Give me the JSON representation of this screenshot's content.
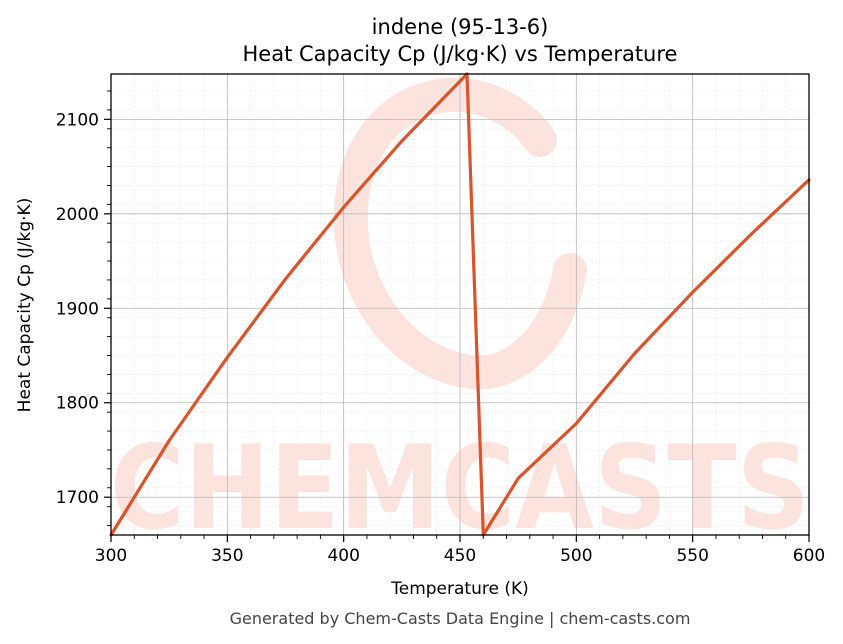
{
  "chart_data": {
    "type": "line",
    "title": "indene (95-13-6)",
    "subtitle": "Heat Capacity Cp (J/kg·K) vs Temperature",
    "xlabel": "Temperature (K)",
    "ylabel": "Heat Capacity Cp (J/kg·K)",
    "xlim": [
      300,
      600
    ],
    "ylim": [
      1660,
      2148
    ],
    "xticks": [
      300,
      350,
      400,
      450,
      500,
      550,
      600
    ],
    "yticks": [
      1700,
      1800,
      1900,
      2000,
      2100
    ],
    "grid": true,
    "line_color": "#d9532b",
    "series": [
      {
        "x": [
          300,
          325,
          350,
          375,
          400,
          425,
          453,
          460,
          475,
          500,
          525,
          550,
          575,
          600
        ],
        "y": [
          1660,
          1760,
          1848,
          1931,
          2007,
          2077,
          2148,
          1660,
          1720,
          1778,
          1852,
          1917,
          1978,
          2036
        ]
      }
    ]
  },
  "watermark": {
    "text": "CHEMCASTS",
    "color": "#fde0da"
  },
  "footer": "Generated by Chem-Casts Data Engine | chem-casts.com"
}
